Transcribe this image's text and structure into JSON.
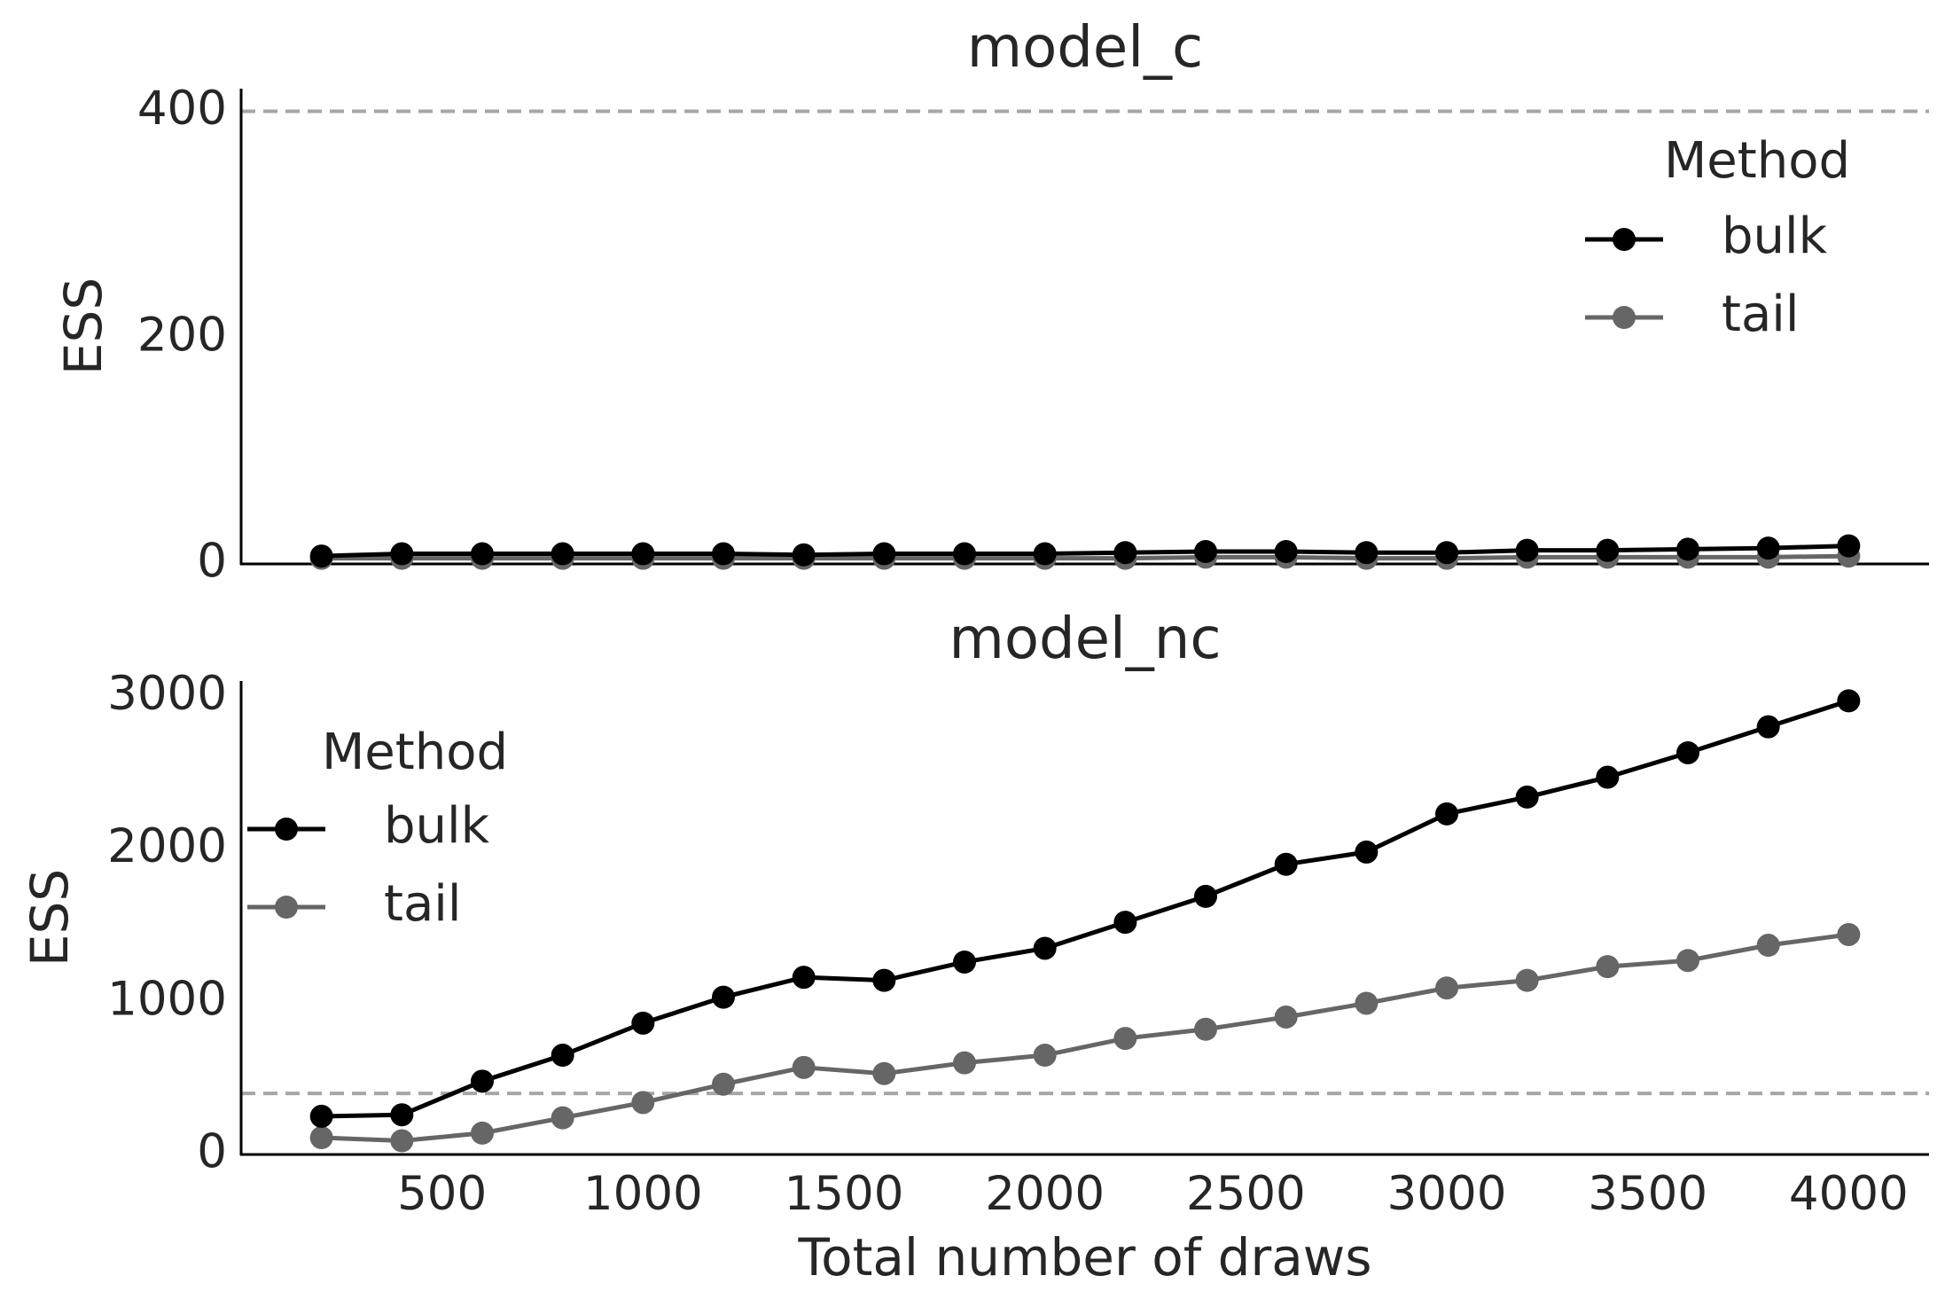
{
  "chart_data": [
    {
      "type": "line",
      "title": "model_c",
      "ylabel": "ESS",
      "xlabel": "",
      "x": [
        200,
        400,
        600,
        800,
        1000,
        1200,
        1400,
        1600,
        1800,
        2000,
        2200,
        2400,
        2600,
        2800,
        3000,
        3200,
        3400,
        3600,
        3800,
        4000
      ],
      "xlim": [
        0,
        4200
      ],
      "ylim": [
        0,
        420
      ],
      "yticks": [
        0,
        200,
        400
      ],
      "xticks": [],
      "reference_line": 400,
      "legend": {
        "title": "Method",
        "placement": "upper right"
      },
      "series": [
        {
          "name": "bulk",
          "color": "#000000",
          "values": [
            7,
            9,
            9,
            9,
            9,
            9,
            8,
            9,
            9,
            9,
            10,
            11,
            11,
            10,
            10,
            12,
            12,
            13,
            14,
            16
          ]
        },
        {
          "name": "tail",
          "color": "#666666",
          "values": [
            5,
            5,
            5,
            5,
            5,
            5,
            5,
            5,
            5,
            5,
            5,
            6,
            6,
            5,
            5,
            6,
            6,
            6,
            6,
            7
          ]
        }
      ]
    },
    {
      "type": "line",
      "title": "model_nc",
      "ylabel": "ESS",
      "xlabel": "Total number of draws",
      "x": [
        200,
        400,
        600,
        800,
        1000,
        1200,
        1400,
        1600,
        1800,
        2000,
        2200,
        2400,
        2600,
        2800,
        3000,
        3200,
        3400,
        3600,
        3800,
        4000
      ],
      "xlim": [
        0,
        4200
      ],
      "ylim": [
        0,
        3100
      ],
      "yticks": [
        0,
        1000,
        2000,
        3000
      ],
      "xticks": [
        500,
        1000,
        1500,
        2000,
        2500,
        3000,
        3500,
        4000
      ],
      "reference_line": 400,
      "legend": {
        "title": "Method",
        "placement": "upper left"
      },
      "series": [
        {
          "name": "bulk",
          "color": "#000000",
          "values": [
            250,
            260,
            480,
            650,
            860,
            1030,
            1160,
            1140,
            1260,
            1350,
            1520,
            1690,
            1900,
            1980,
            2230,
            2340,
            2470,
            2630,
            2800,
            2970
          ]
        },
        {
          "name": "tail",
          "color": "#666666",
          "values": [
            110,
            90,
            140,
            240,
            340,
            460,
            570,
            530,
            600,
            650,
            760,
            820,
            900,
            990,
            1090,
            1140,
            1230,
            1270,
            1370,
            1440
          ]
        }
      ]
    }
  ],
  "colors": {
    "reference_line": "#a6a6a6",
    "axis": "#000000",
    "text": "#262626"
  }
}
